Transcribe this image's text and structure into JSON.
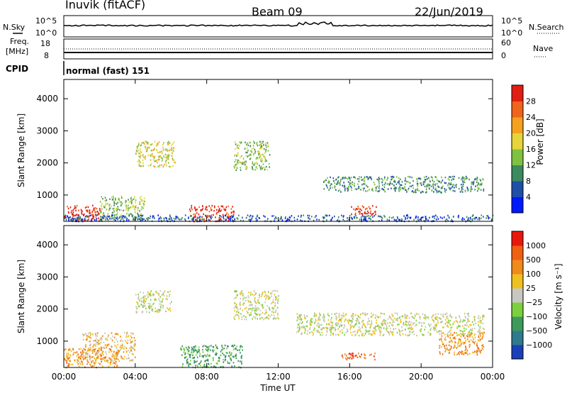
{
  "header": {
    "station": "Inuvik (fitACF)",
    "beam": "Beam 09",
    "date": "22/Jun/2019"
  },
  "top_panels": {
    "nsky": {
      "label": "N.Sky",
      "tick_top": "10^5",
      "tick_bottom": "10^0"
    },
    "nsearch": {
      "label": "N.Search",
      "tick_top": "10^5",
      "tick_bottom": "10^0"
    },
    "freq": {
      "label_line1": "Freq.",
      "label_line2": "[MHz]",
      "tick_top": "18",
      "tick_bottom": "8"
    },
    "nave": {
      "label": "Nave",
      "tick_top": "60",
      "tick_bottom": "0"
    },
    "cpid": {
      "label": "CPID",
      "value": "normal (fast) 151"
    }
  },
  "chart_data": [
    {
      "type": "heatmap",
      "name": "power",
      "ylabel": "Slant Range [km]",
      "yticks": [
        "1000",
        "2000",
        "3000",
        "4000"
      ],
      "ylim": [
        180,
        4600
      ],
      "xlim": [
        0,
        24
      ],
      "colorbar": {
        "label": "Power [dB]",
        "ticks": [
          "4",
          "8",
          "12",
          "16",
          "20",
          "24",
          "28"
        ],
        "colors": [
          "#0019ff",
          "#1f4fa8",
          "#3d8a5e",
          "#7fc241",
          "#e6d53a",
          "#f5a01e",
          "#f0641b",
          "#e11e12"
        ]
      },
      "scatter_regions": [
        {
          "t0": 0.0,
          "t1": 2.0,
          "r0": 200,
          "r1": 700,
          "level": 7
        },
        {
          "t0": 2.0,
          "t1": 4.5,
          "r0": 250,
          "r1": 1000,
          "level": 3
        },
        {
          "t0": 4.0,
          "t1": 6.2,
          "r0": 1900,
          "r1": 2700,
          "level": 4
        },
        {
          "t0": 7.0,
          "t1": 9.5,
          "r0": 200,
          "r1": 700,
          "level": 7
        },
        {
          "t0": 9.5,
          "t1": 11.5,
          "r0": 1800,
          "r1": 2700,
          "level": 3
        },
        {
          "t0": 14.5,
          "t1": 23.5,
          "r0": 1100,
          "r1": 1600,
          "level": 2
        },
        {
          "t0": 16.0,
          "t1": 17.5,
          "r0": 400,
          "r1": 700,
          "level": 7
        },
        {
          "t0": 0.0,
          "t1": 24.0,
          "r0": 200,
          "r1": 400,
          "level": 1
        }
      ]
    },
    {
      "type": "heatmap",
      "name": "velocity",
      "ylabel": "Slant Range [km]",
      "xlabel": "Time UT",
      "xticks": [
        "00:00",
        "04:00",
        "08:00",
        "12:00",
        "16:00",
        "20:00",
        "00:00"
      ],
      "yticks": [
        "1000",
        "2000",
        "3000",
        "4000"
      ],
      "ylim": [
        180,
        4600
      ],
      "xlim": [
        0,
        24
      ],
      "colorbar": {
        "label": "Velocity [m s⁻¹]",
        "ticks": [
          "1000",
          "500",
          "100",
          "25",
          "−25",
          "−100",
          "−500",
          "−1000"
        ],
        "colors": [
          "#1a3fb8",
          "#2f7a8c",
          "#3d9a5a",
          "#7cd040",
          "#c8c8c0",
          "#f0c020",
          "#f08a1a",
          "#ef6010",
          "#e8180c"
        ]
      },
      "scatter_regions": [
        {
          "t0": 0.0,
          "t1": 3.0,
          "r0": 200,
          "r1": 800,
          "level": 6
        },
        {
          "t0": 1.0,
          "t1": 4.0,
          "r0": 400,
          "r1": 1300,
          "level": 5
        },
        {
          "t0": 4.0,
          "t1": 6.0,
          "r0": 1900,
          "r1": 2600,
          "level": 4
        },
        {
          "t0": 6.5,
          "t1": 10.0,
          "r0": 200,
          "r1": 900,
          "level": 2
        },
        {
          "t0": 9.5,
          "t1": 12.0,
          "r0": 1700,
          "r1": 2600,
          "level": 4
        },
        {
          "t0": 13.0,
          "t1": 23.5,
          "r0": 1200,
          "r1": 1900,
          "level": 4
        },
        {
          "t0": 15.5,
          "t1": 17.5,
          "r0": 450,
          "r1": 650,
          "level": 7
        },
        {
          "t0": 21.0,
          "t1": 23.5,
          "r0": 600,
          "r1": 1300,
          "level": 6
        }
      ]
    }
  ]
}
